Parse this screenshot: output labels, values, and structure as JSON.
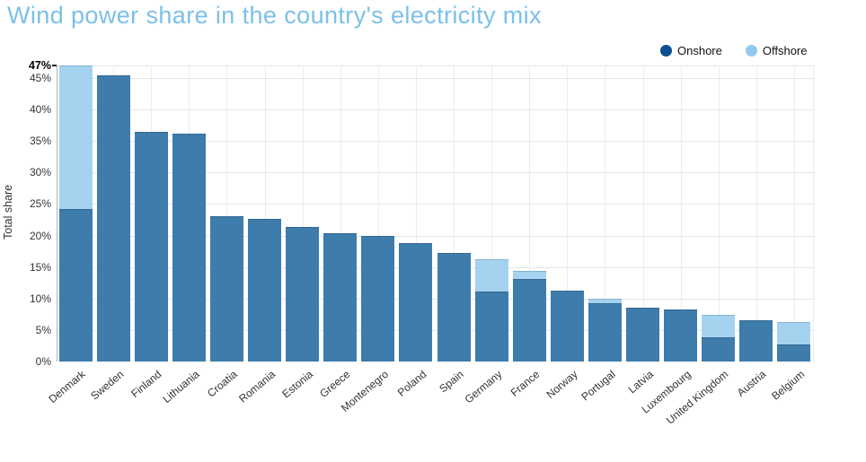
{
  "title": "Wind power share in the country's electricity mix",
  "legend": {
    "onshore_label": "Onshore",
    "offshore_label": "Offshore"
  },
  "colors": {
    "title": "#7cc0e8",
    "onshore_bar": "#3e7cac",
    "offshore_bar": "#a5d3ef",
    "legend_onshore_dot": "#0c4e8e",
    "legend_offshore_dot": "#92c9ee",
    "grid": "#e6e6e6",
    "axis_line": "#b0b0b0",
    "tick_label": "#333333"
  },
  "y_axis": {
    "label": "Total share",
    "tick_values": [
      0,
      5,
      10,
      15,
      20,
      25,
      30,
      35,
      40,
      45
    ],
    "tick_labels": [
      "0%",
      "5%",
      "10%",
      "15%",
      "20%",
      "25%",
      "30%",
      "35%",
      "40%",
      "45%"
    ],
    "max": {
      "value": 47,
      "label": "47%"
    }
  },
  "chart_data": {
    "type": "bar",
    "stacked": true,
    "title": "Wind power share in the country's electricity mix",
    "xlabel": "",
    "ylabel": "Total share",
    "ylim": [
      0,
      47
    ],
    "grid": true,
    "legend_position": "top-right",
    "categories": [
      "Denmark",
      "Sweden",
      "Finland",
      "Lithuania",
      "Croatia",
      "Romania",
      "Estonia",
      "Greece",
      "Montenegro",
      "Poland",
      "Spain",
      "Germany",
      "France",
      "Norway",
      "Portugal",
      "Latvia",
      "Luxembourg",
      "United Kingdom",
      "Austria",
      "Belgium"
    ],
    "series": [
      {
        "name": "Onshore",
        "color": "#3e7cac",
        "values": [
          24.2,
          45.4,
          36.5,
          36.2,
          23.1,
          22.6,
          21.4,
          20.3,
          20.0,
          18.8,
          17.2,
          11.1,
          13.1,
          11.3,
          9.3,
          8.5,
          8.3,
          3.9,
          6.6,
          2.7
        ]
      },
      {
        "name": "Offshore",
        "color": "#a5d3ef",
        "values": [
          22.8,
          0,
          0,
          0,
          0,
          0,
          0,
          0,
          0,
          0,
          0,
          5.1,
          1.3,
          0,
          0.7,
          0,
          0,
          3.5,
          0,
          3.5
        ]
      }
    ]
  }
}
